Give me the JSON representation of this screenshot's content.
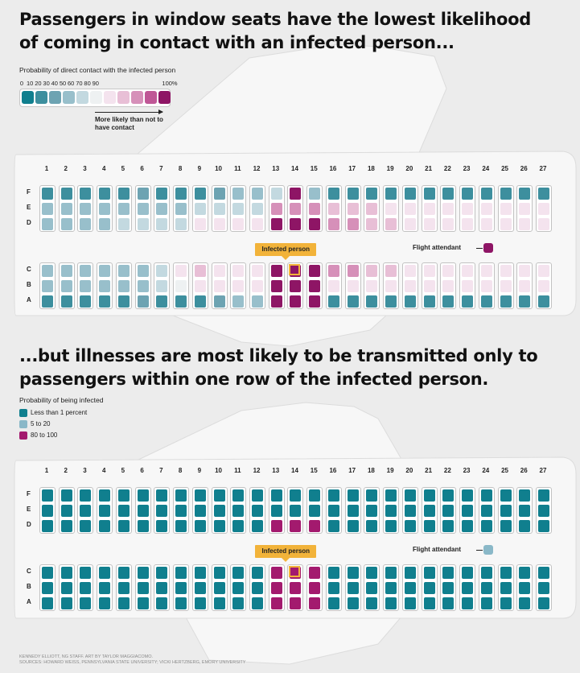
{
  "chart_data": [
    {
      "type": "heatmap",
      "title": "Passengers in window seats have the lowest likelihood of coming in contact with an infected person...",
      "legend_title": "Probability of direct contact with the infected person",
      "legend_ticks": [
        "0",
        "10",
        "20",
        "30",
        "40",
        "50",
        "60",
        "70",
        "80",
        "90",
        "100%"
      ],
      "legend_note": "More likely than not to have contact",
      "columns": [
        "1",
        "2",
        "3",
        "4",
        "5",
        "6",
        "7",
        "8",
        "9",
        "10",
        "11",
        "12",
        "13",
        "14",
        "15",
        "16",
        "17",
        "18",
        "19",
        "20",
        "21",
        "22",
        "23",
        "24",
        "25",
        "26",
        "27"
      ],
      "rows": [
        "F",
        "E",
        "D",
        "C",
        "B",
        "A"
      ],
      "values": {
        "F": [
          5,
          5,
          5,
          5,
          5,
          15,
          5,
          5,
          5,
          15,
          25,
          25,
          35,
          95,
          25,
          5,
          5,
          5,
          5,
          5,
          5,
          5,
          5,
          5,
          5,
          5,
          5
        ],
        "E": [
          25,
          25,
          25,
          25,
          25,
          25,
          25,
          25,
          35,
          35,
          35,
          35,
          75,
          75,
          75,
          65,
          65,
          65,
          55,
          55,
          55,
          55,
          55,
          55,
          55,
          55,
          55
        ],
        "D": [
          25,
          25,
          25,
          25,
          35,
          35,
          35,
          35,
          55,
          55,
          55,
          55,
          95,
          95,
          95,
          75,
          75,
          65,
          65,
          55,
          55,
          55,
          55,
          55,
          55,
          55,
          55
        ],
        "C": [
          25,
          25,
          25,
          25,
          25,
          25,
          35,
          55,
          65,
          55,
          55,
          55,
          95,
          100,
          95,
          75,
          75,
          65,
          65,
          55,
          55,
          55,
          55,
          55,
          55,
          55,
          55
        ],
        "B": [
          25,
          25,
          25,
          25,
          25,
          25,
          35,
          45,
          55,
          55,
          55,
          55,
          95,
          95,
          95,
          55,
          55,
          55,
          55,
          55,
          55,
          55,
          55,
          55,
          55,
          55,
          55
        ],
        "A": [
          5,
          5,
          5,
          5,
          5,
          15,
          5,
          5,
          5,
          15,
          25,
          25,
          95,
          95,
          95,
          5,
          5,
          5,
          5,
          5,
          5,
          5,
          5,
          5,
          5,
          5,
          5
        ]
      },
      "infected_seat": {
        "row": "C",
        "column": "14",
        "label": "Infected person"
      },
      "flight_attendant": {
        "label": "Flight attendant",
        "value": 95
      }
    },
    {
      "type": "heatmap",
      "title": "...but illnesses are most likely to be transmitted only to passengers within one row of the infected person.",
      "legend_title": "Probability of being infected",
      "categories": [
        {
          "key": "low",
          "label": "Less than 1 percent",
          "color": "#107f8e"
        },
        {
          "key": "mid",
          "label": "5 to 20",
          "color": "#8ab8c8"
        },
        {
          "key": "high",
          "label": "80 to 100",
          "color": "#a31a6e"
        }
      ],
      "columns": [
        "1",
        "2",
        "3",
        "4",
        "5",
        "6",
        "7",
        "8",
        "9",
        "10",
        "11",
        "12",
        "13",
        "14",
        "15",
        "16",
        "17",
        "18",
        "19",
        "20",
        "21",
        "22",
        "23",
        "24",
        "25",
        "26",
        "27"
      ],
      "rows": [
        "F",
        "E",
        "D",
        "C",
        "B",
        "A"
      ],
      "values": {
        "F": [
          "low",
          "low",
          "low",
          "low",
          "low",
          "low",
          "low",
          "low",
          "low",
          "low",
          "low",
          "low",
          "low",
          "low",
          "low",
          "low",
          "low",
          "low",
          "low",
          "low",
          "low",
          "low",
          "low",
          "low",
          "low",
          "low",
          "low"
        ],
        "E": [
          "low",
          "low",
          "low",
          "low",
          "low",
          "low",
          "low",
          "low",
          "low",
          "low",
          "low",
          "low",
          "low",
          "low",
          "low",
          "low",
          "low",
          "low",
          "low",
          "low",
          "low",
          "low",
          "low",
          "low",
          "low",
          "low",
          "low"
        ],
        "D": [
          "low",
          "low",
          "low",
          "low",
          "low",
          "low",
          "low",
          "low",
          "low",
          "low",
          "low",
          "low",
          "high",
          "high",
          "high",
          "low",
          "low",
          "low",
          "low",
          "low",
          "low",
          "low",
          "low",
          "low",
          "low",
          "low",
          "low"
        ],
        "C": [
          "low",
          "low",
          "low",
          "low",
          "low",
          "low",
          "low",
          "low",
          "low",
          "low",
          "low",
          "low",
          "high",
          "high",
          "high",
          "low",
          "low",
          "low",
          "low",
          "low",
          "low",
          "low",
          "low",
          "low",
          "low",
          "low",
          "low"
        ],
        "B": [
          "low",
          "low",
          "low",
          "low",
          "low",
          "low",
          "low",
          "low",
          "low",
          "low",
          "low",
          "low",
          "high",
          "high",
          "high",
          "low",
          "low",
          "low",
          "low",
          "low",
          "low",
          "low",
          "low",
          "low",
          "low",
          "low",
          "low"
        ],
        "A": [
          "low",
          "low",
          "low",
          "low",
          "low",
          "low",
          "low",
          "low",
          "low",
          "low",
          "low",
          "low",
          "high",
          "high",
          "high",
          "low",
          "low",
          "low",
          "low",
          "low",
          "low",
          "low",
          "low",
          "low",
          "low",
          "low",
          "low"
        ]
      },
      "infected_seat": {
        "row": "C",
        "column": "14",
        "label": "Infected person"
      },
      "flight_attendant": {
        "label": "Flight attendant",
        "category": "mid"
      }
    }
  ],
  "color_scale": [
    "#107f8e",
    "#3d8f9e",
    "#6da3b2",
    "#98bfcb",
    "#c3d9e0",
    "#eef1f2",
    "#f4e3ee",
    "#e8bfd6",
    "#d690b9",
    "#bf5796",
    "#8e1565"
  ],
  "title1_lines": [
    "Passengers in window seats have the lowest likelihood",
    "of coming in contact with an infected person..."
  ],
  "title2_lines": [
    "...but illnesses are most likely to be transmitted only to",
    "passengers within one row of the infected person."
  ],
  "credit_lines": [
    "KENNEDY ELLIOTT, NG STAFF. ART BY TAYLOR MAGGIACOMO.",
    "SOURCES: HOWARD WEISS, PENNSYLVANIA STATE UNIVERSITY; VICKI HERTZBERG, EMORY UNIVERSITY"
  ]
}
